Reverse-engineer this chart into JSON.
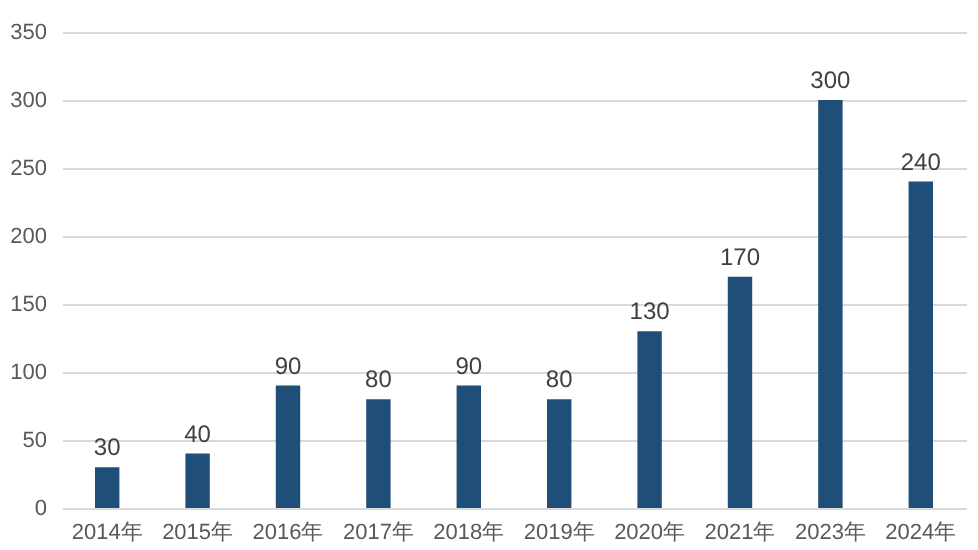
{
  "chart_data": {
    "type": "bar",
    "categories": [
      "2014年",
      "2015年",
      "2016年",
      "2017年",
      "2018年",
      "2019年",
      "2020年",
      "2021年",
      "2023年",
      "2024年"
    ],
    "values": [
      30,
      40,
      90,
      80,
      90,
      80,
      130,
      170,
      300,
      240
    ],
    "color": "#1f4e79",
    "ylim": [
      0,
      350
    ],
    "yticks": [
      0,
      50,
      100,
      150,
      200,
      250,
      300,
      350
    ],
    "grid": "y",
    "data_labels": true
  }
}
